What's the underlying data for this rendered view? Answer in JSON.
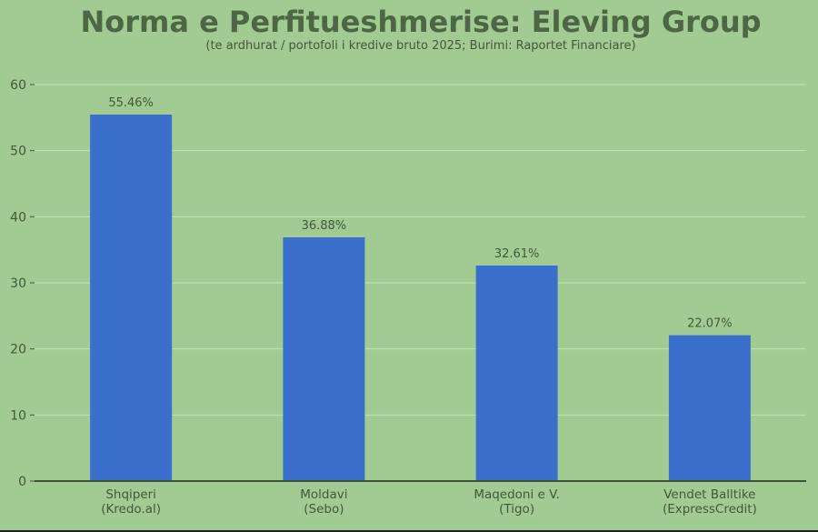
{
  "chart_data": {
    "type": "bar",
    "title": "Norma e Perfitueshmerise: Eleving Group",
    "subtitle": "(te ardhurat / portofoli i kredive bruto 2025; Burimi: Raportet Financiare)",
    "xlabel": "",
    "ylabel": "",
    "categories": [
      [
        "Shqiperi",
        "(Kredo.al)"
      ],
      [
        "Moldavi",
        "(Sebo)"
      ],
      [
        "Maqedoni e V.",
        "(Tigo)"
      ],
      [
        "Vendet Balltike",
        "(ExpressCredit)"
      ]
    ],
    "values": [
      55.46,
      36.88,
      32.61,
      22.07
    ],
    "value_labels": [
      "55.46%",
      "36.88%",
      "32.61%",
      "22.07%"
    ],
    "ylim": [
      0,
      60
    ],
    "yticks": [
      0,
      10,
      20,
      30,
      40,
      50,
      60
    ],
    "grid": true,
    "legend": "none",
    "colors": {
      "background": "#a1cb92",
      "bar": "#3a70cc",
      "title": "#4d6644",
      "text": "#44573c",
      "grid": "#c4e0b6",
      "axis": "#3b5534"
    }
  }
}
